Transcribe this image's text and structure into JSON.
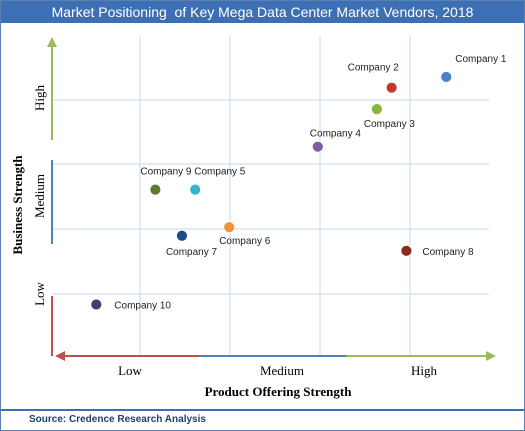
{
  "chart_data": {
    "type": "scatter",
    "title": "Market Positioning  of Key Mega Data Center Market Vendors, 2018",
    "xlabel": "Product Offering Strength",
    "ylabel": "Business Strength",
    "x_tick_labels": [
      "Low",
      "Medium",
      "High"
    ],
    "y_tick_labels": [
      "Low",
      "Medium",
      "High"
    ],
    "xlim": [
      0,
      3
    ],
    "ylim": [
      0,
      3
    ],
    "grid": true,
    "legend": "none",
    "points": [
      {
        "label": "Company 1",
        "x": 2.67,
        "y": 2.6,
        "color": "#4a7fc9"
      },
      {
        "label": "Company 2",
        "x": 2.3,
        "y": 2.5,
        "color": "#c0392b"
      },
      {
        "label": "Company 3",
        "x": 2.2,
        "y": 2.3,
        "color": "#8ab53d"
      },
      {
        "label": "Company 4",
        "x": 1.8,
        "y": 1.95,
        "color": "#7a5ea6"
      },
      {
        "label": "Company 5",
        "x": 0.97,
        "y": 1.55,
        "color": "#35b3d0"
      },
      {
        "label": "Company 6",
        "x": 1.2,
        "y": 1.2,
        "color": "#f2923a"
      },
      {
        "label": "Company 7",
        "x": 0.88,
        "y": 1.12,
        "color": "#1f4b87"
      },
      {
        "label": "Company 8",
        "x": 2.4,
        "y": 0.98,
        "color": "#8a2b1f"
      },
      {
        "label": "Company 9",
        "x": 0.7,
        "y": 1.55,
        "color": "#5f7a2f"
      },
      {
        "label": "Company 10",
        "x": 0.3,
        "y": 0.48,
        "color": "#4a3b70"
      }
    ]
  },
  "source": "Source: Credence Research Analysis",
  "colors": {
    "title_bar": "#3d6fb4",
    "axis_red": "#c0504d",
    "axis_green": "#9bbb59",
    "axis_blue": "#4f81bd",
    "grid": "#c6d9f1"
  }
}
